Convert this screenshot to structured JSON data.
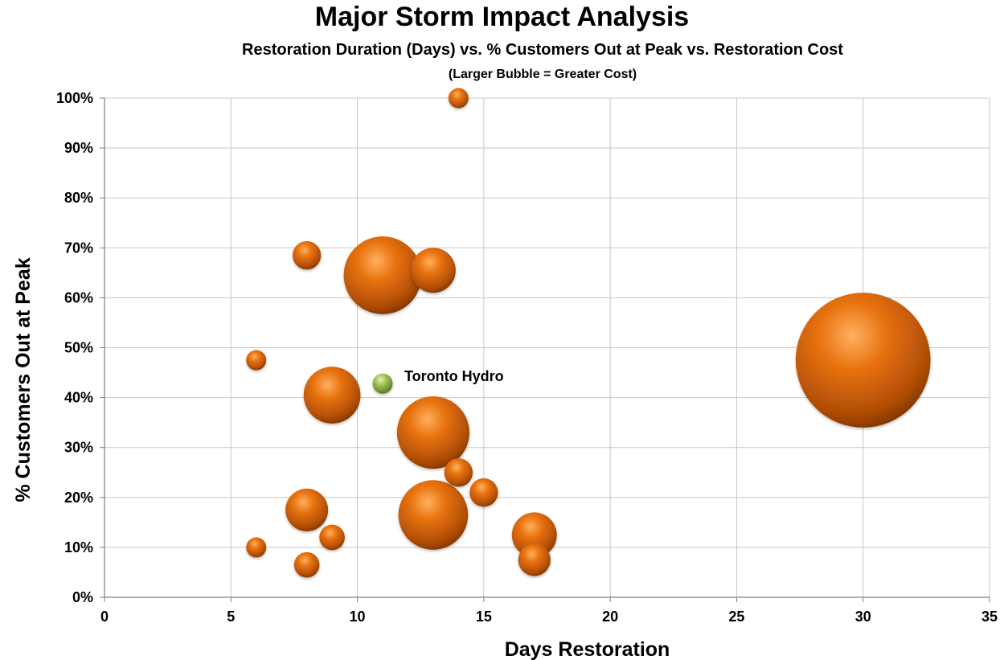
{
  "chart_data": {
    "type": "bubble",
    "title": "Major Storm Impact Analysis",
    "subtitle": "Restoration Duration (Days) vs. % Customers Out at Peak vs. Restoration Cost",
    "note": "(Larger Bubble = Greater Cost)",
    "xlabel": "Days Restoration",
    "ylabel": "% Customers Out at Peak",
    "xlim": [
      0,
      35
    ],
    "ylim": [
      0,
      100
    ],
    "x_ticks": [
      "0",
      "5",
      "10",
      "15",
      "20",
      "25",
      "30",
      "35"
    ],
    "y_ticks": [
      "0%",
      "10%",
      "20%",
      "30%",
      "40%",
      "50%",
      "60%",
      "70%",
      "80%",
      "90%",
      "100%"
    ],
    "grid": true,
    "colors": {
      "bubble": "#e0700f",
      "highlight": "#8fb044"
    },
    "series": [
      {
        "points": [
          {
            "x": 14,
            "y": 100,
            "size": 1
          },
          {
            "x": 8,
            "y": 68.5,
            "size": 2
          },
          {
            "x": 11,
            "y": 64.5,
            "size": 15
          },
          {
            "x": 13,
            "y": 65.5,
            "size": 5
          },
          {
            "x": 6,
            "y": 47.5,
            "size": 1
          },
          {
            "x": 30,
            "y": 47.5,
            "size": 45
          },
          {
            "x": 9,
            "y": 40.5,
            "size": 8
          },
          {
            "x": 13,
            "y": 33,
            "size": 13
          },
          {
            "x": 14,
            "y": 25,
            "size": 2
          },
          {
            "x": 15,
            "y": 21,
            "size": 2
          },
          {
            "x": 8,
            "y": 17.5,
            "size": 4.5
          },
          {
            "x": 13,
            "y": 16.5,
            "size": 12
          },
          {
            "x": 17,
            "y": 12.5,
            "size": 5
          },
          {
            "x": 9,
            "y": 12,
            "size": 1.6
          },
          {
            "x": 6,
            "y": 10,
            "size": 1
          },
          {
            "x": 17,
            "y": 7.5,
            "size": 2.6
          },
          {
            "x": 8,
            "y": 6.5,
            "size": 1.6
          }
        ]
      },
      {
        "name": "Toronto Hydro",
        "points": [
          {
            "x": 11,
            "y": 42.8,
            "size": 1
          }
        ]
      }
    ]
  }
}
